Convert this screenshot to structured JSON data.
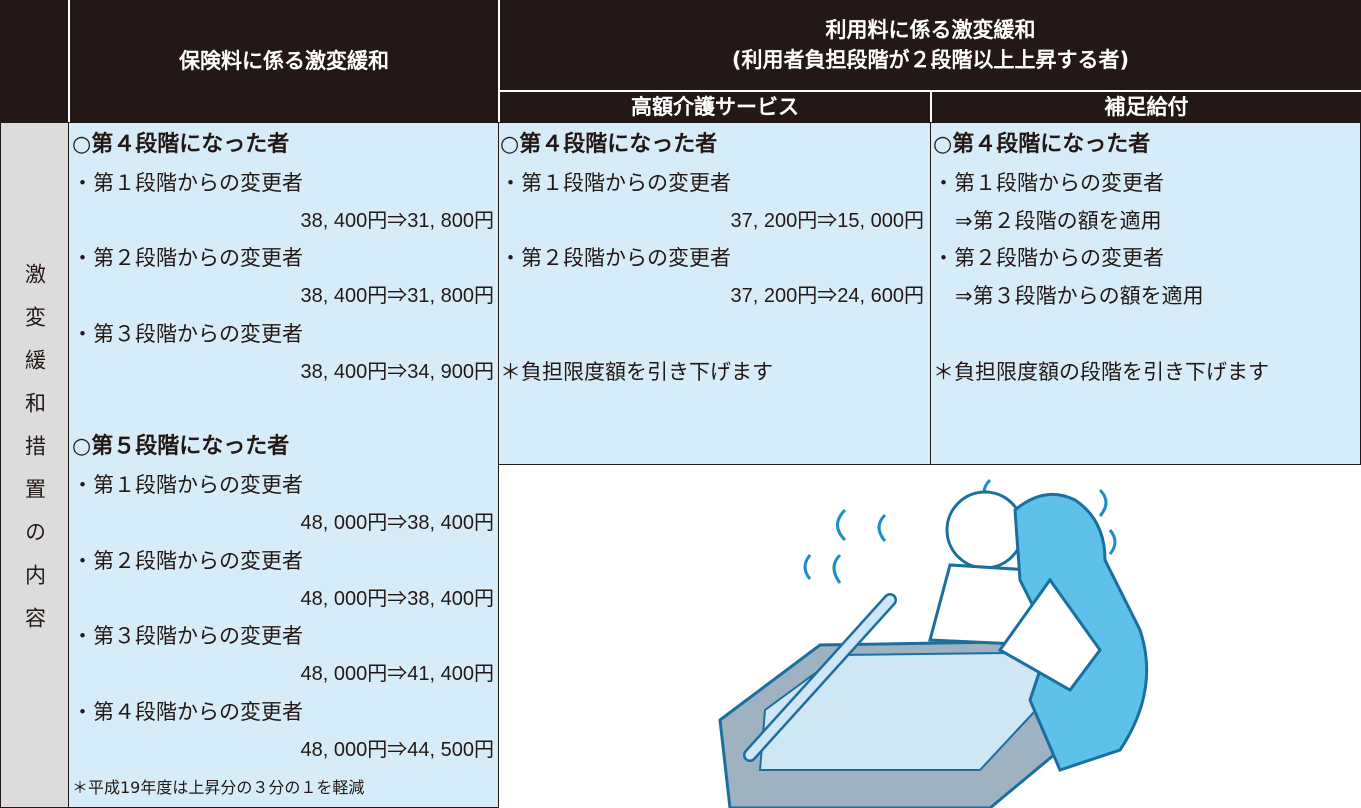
{
  "header": {
    "left_title": "保険料に係る激変緩和",
    "right_title": [
      "利用料に係る激変緩和",
      "(利用者負担段階が２段階以上上昇する者)"
    ],
    "sub_titles": [
      "高額介護サービス",
      "補足給付"
    ]
  },
  "row_label": "激変緩和措置の内容",
  "columns": [
    {
      "groups": [
        {
          "heading": "○第４段階になった者",
          "items": [
            {
              "label": "・第１段階からの変更者",
              "amount": "38, 400円⇒31, 800円"
            },
            {
              "label": "・第２段階からの変更者",
              "amount": "38, 400円⇒31, 800円"
            },
            {
              "label": "・第３段階からの変更者",
              "amount": "38, 400円⇒34, 900円"
            }
          ]
        },
        {
          "heading": "○第５段階になった者",
          "items": [
            {
              "label": "・第１段階からの変更者",
              "amount": "48, 000円⇒38, 400円"
            },
            {
              "label": "・第２段階からの変更者",
              "amount": "48, 000円⇒38, 400円"
            },
            {
              "label": "・第３段階からの変更者",
              "amount": "48, 000円⇒41, 400円"
            },
            {
              "label": "・第４段階からの変更者",
              "amount": "48, 000円⇒44, 500円"
            }
          ]
        }
      ],
      "note": "＊平成19年度は上昇分の３分の１を軽減"
    },
    {
      "groups": [
        {
          "heading": "○第４段階になった者",
          "items": [
            {
              "label": "・第１段階からの変更者",
              "amount": "37, 200円⇒15, 000円"
            },
            {
              "label": "・第２段階からの変更者",
              "amount": "37, 200円⇒24, 600円"
            }
          ]
        }
      ],
      "note": "＊負担限度額を引き下げます"
    },
    {
      "groups": [
        {
          "heading": "○第４段階になった者",
          "items": [
            {
              "label": "・第１段階からの変更者",
              "amount": "⇒第２段階の額を適用"
            },
            {
              "label": "・第２段階からの変更者",
              "amount": "⇒第３段階からの額を適用"
            }
          ]
        }
      ],
      "note": "＊負担限度額の段階を引き下げます"
    }
  ]
}
